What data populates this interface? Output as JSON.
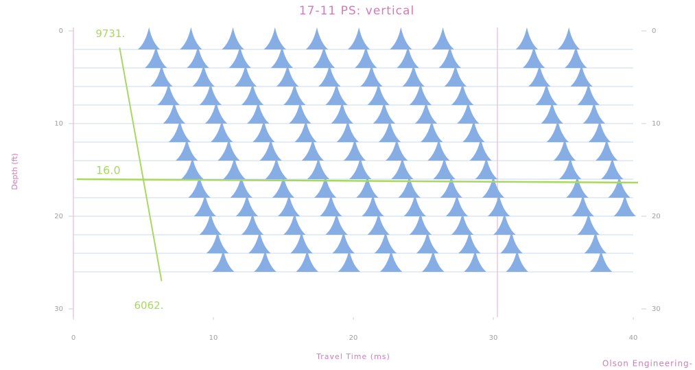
{
  "chart_data": {
    "type": "seismic",
    "title": "17-11 PS: vertical",
    "x_label": "Travel Time (ms)",
    "y_label": "Depth (ft)",
    "credit": "Olson Engineering-",
    "color": "#86aee4",
    "xlim": [
      0,
      40
    ],
    "xticks": [
      0,
      10,
      20,
      30,
      40
    ],
    "ylim": [
      0,
      30
    ],
    "yticks": [
      0,
      10,
      20,
      30
    ],
    "traces": [
      {
        "depth": 2,
        "peaks": [
          5.4,
          8.4,
          11.4,
          14.4,
          17.4,
          20.4,
          23.4,
          26.4,
          32.4,
          35.4
        ]
      },
      {
        "depth": 4,
        "peaks": [
          5.9,
          8.9,
          11.9,
          14.9,
          17.9,
          20.9,
          23.9,
          26.9,
          32.9,
          35.9
        ]
      },
      {
        "depth": 6,
        "peaks": [
          6.3,
          9.3,
          12.3,
          15.3,
          18.3,
          21.3,
          24.3,
          27.3,
          33.3,
          36.3
        ]
      },
      {
        "depth": 8,
        "peaks": [
          6.8,
          9.8,
          12.8,
          15.8,
          18.8,
          21.8,
          24.8,
          27.8,
          33.8,
          36.8
        ]
      },
      {
        "depth": 10,
        "peaks": [
          7.2,
          10.2,
          13.2,
          16.2,
          19.2,
          22.2,
          25.2,
          28.2,
          34.2,
          37.2
        ]
      },
      {
        "depth": 12,
        "peaks": [
          7.6,
          10.6,
          13.6,
          16.6,
          19.6,
          22.6,
          25.6,
          28.6,
          34.6,
          37.6
        ]
      },
      {
        "depth": 14,
        "peaks": [
          8.1,
          11.1,
          14.1,
          17.1,
          20.1,
          23.1,
          26.1,
          29.1,
          35.1,
          38.1
        ]
      },
      {
        "depth": 16,
        "peaks": [
          8.5,
          11.5,
          14.5,
          17.5,
          20.5,
          23.5,
          26.5,
          29.5,
          35.5,
          38.5
        ]
      },
      {
        "depth": 18,
        "peaks": [
          9.0,
          12.0,
          15.0,
          18.0,
          21.0,
          24.0,
          27.0,
          30.0,
          36.0,
          39.0
        ]
      },
      {
        "depth": 20,
        "peaks": [
          9.4,
          12.4,
          15.4,
          18.4,
          21.4,
          24.4,
          27.4,
          30.4,
          36.4,
          39.4
        ]
      },
      {
        "depth": 22,
        "peaks": [
          9.8,
          12.8,
          15.8,
          18.8,
          21.8,
          24.8,
          27.8,
          30.8,
          36.8
        ]
      },
      {
        "depth": 24,
        "peaks": [
          10.3,
          13.3,
          16.3,
          19.3,
          22.3,
          25.3,
          28.3,
          31.3,
          37.3
        ]
      },
      {
        "depth": 26,
        "peaks": [
          10.7,
          13.7,
          16.7,
          19.7,
          22.7,
          25.7,
          28.7,
          31.7,
          37.7
        ]
      }
    ],
    "depth_line": {
      "value": 16,
      "label": "16.0",
      "color": "#a8d860"
    },
    "velocity_line": {
      "x": [
        3.3,
        6.3
      ],
      "y": [
        1.8,
        27
      ],
      "start_label": "9731.",
      "end_label": "6062.",
      "color": "#a8d860"
    }
  }
}
